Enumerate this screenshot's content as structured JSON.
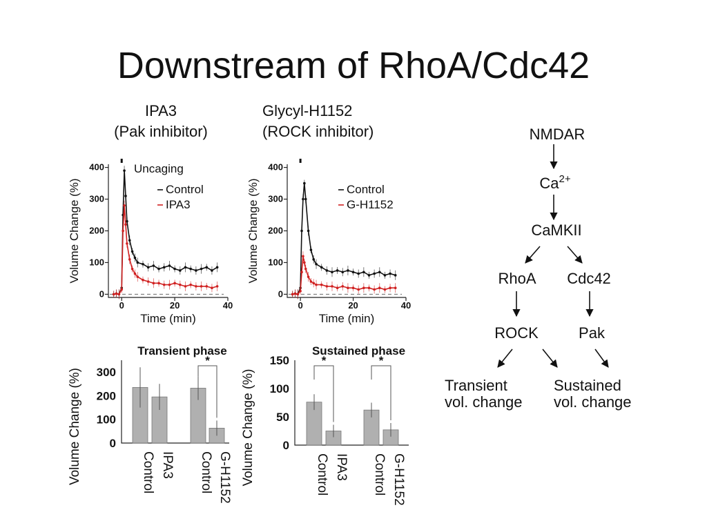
{
  "slide": {
    "title": "Downstream of RhoA/Cdc42"
  },
  "columns": [
    {
      "line1": "IPA3",
      "line2": "(Pak inhibitor)"
    },
    {
      "line1": "Glycyl-H1152",
      "line2": "(ROCK inhibitor)"
    }
  ],
  "colors": {
    "control": "#111111",
    "treated": "#d02020",
    "bar": "#b0b0b0"
  },
  "chart_data": [
    {
      "type": "line",
      "panel": "IPA3 time course",
      "annotation": "Uncaging",
      "xlabel": "Time (min)",
      "ylabel": "Volume Change (%)",
      "xlim": [
        -5,
        40
      ],
      "ylim": [
        -10,
        410
      ],
      "xticks": [
        0,
        20,
        40
      ],
      "yticks": [
        0,
        100,
        200,
        300,
        400
      ],
      "baseline": 0,
      "series": [
        {
          "name": "Control",
          "color": "#111111",
          "x": [
            -3,
            -2,
            -1,
            0,
            0.5,
            1,
            1.5,
            2,
            3,
            4,
            5,
            6,
            8,
            10,
            12,
            14,
            16,
            18,
            20,
            22,
            24,
            26,
            28,
            30,
            32,
            34,
            36
          ],
          "y": [
            0,
            2,
            0,
            20,
            250,
            390,
            310,
            230,
            170,
            135,
            115,
            100,
            95,
            85,
            90,
            80,
            85,
            90,
            80,
            75,
            85,
            80,
            75,
            80,
            85,
            75,
            85
          ]
        },
        {
          "name": "IPA3",
          "color": "#d02020",
          "x": [
            -3,
            -2,
            -1,
            0,
            0.5,
            1,
            1.5,
            2,
            3,
            4,
            5,
            6,
            8,
            10,
            12,
            14,
            16,
            18,
            20,
            22,
            24,
            26,
            28,
            30,
            32,
            34,
            36
          ],
          "y": [
            0,
            2,
            0,
            15,
            200,
            280,
            220,
            160,
            110,
            80,
            65,
            55,
            45,
            40,
            35,
            35,
            30,
            30,
            35,
            30,
            25,
            30,
            25,
            25,
            25,
            20,
            25
          ]
        }
      ]
    },
    {
      "type": "line",
      "panel": "G-H1152 time course",
      "xlabel": "Time (min)",
      "ylabel": "Volume Change (%)",
      "xlim": [
        -5,
        40
      ],
      "ylim": [
        -10,
        410
      ],
      "xticks": [
        0,
        20,
        40
      ],
      "yticks": [
        0,
        100,
        200,
        300,
        400
      ],
      "baseline": 0,
      "series": [
        {
          "name": "Control",
          "color": "#111111",
          "x": [
            -3,
            -2,
            -1,
            0,
            0.5,
            1,
            1.5,
            2,
            3,
            4,
            5,
            6,
            8,
            10,
            12,
            14,
            16,
            18,
            20,
            22,
            24,
            26,
            28,
            30,
            32,
            34,
            36
          ],
          "y": [
            0,
            2,
            0,
            20,
            200,
            300,
            350,
            300,
            200,
            140,
            110,
            95,
            85,
            75,
            70,
            75,
            70,
            75,
            70,
            65,
            70,
            60,
            65,
            70,
            60,
            65,
            60
          ]
        },
        {
          "name": "G-H1152",
          "color": "#d02020",
          "x": [
            -3,
            -2,
            -1,
            0,
            0.5,
            1,
            1.5,
            2,
            3,
            4,
            5,
            6,
            8,
            10,
            12,
            14,
            16,
            18,
            20,
            22,
            24,
            26,
            28,
            30,
            32,
            34,
            36
          ],
          "y": [
            0,
            2,
            0,
            10,
            70,
            120,
            100,
            80,
            55,
            40,
            35,
            30,
            30,
            25,
            25,
            20,
            25,
            20,
            20,
            15,
            20,
            20,
            15,
            20,
            15,
            20,
            20
          ]
        }
      ]
    },
    {
      "type": "bar",
      "panel": "Transient phase",
      "title": "Transient phase",
      "ylabel": "Volume Change (%)",
      "ylim": [
        0,
        350
      ],
      "yticks": [
        0,
        100,
        200,
        300
      ],
      "categories": [
        "Control",
        "IPA3",
        "Control",
        "G-H1152"
      ],
      "values": [
        235,
        195,
        232,
        63
      ],
      "errors": [
        85,
        55,
        50,
        32
      ],
      "significance": [
        {
          "pair": [
            2,
            3
          ],
          "label": "*"
        }
      ]
    },
    {
      "type": "bar",
      "panel": "Sustained phase",
      "title": "Sustained phase",
      "ylabel": "Volume Change (%)",
      "ylim": [
        0,
        150
      ],
      "yticks": [
        0,
        50,
        100,
        150
      ],
      "categories": [
        "Control",
        "IPA3",
        "Control",
        "G-H1152"
      ],
      "values": [
        76,
        25,
        62,
        27
      ],
      "errors": [
        14,
        11,
        13,
        12
      ],
      "significance": [
        {
          "pair": [
            0,
            1
          ],
          "label": "*"
        },
        {
          "pair": [
            2,
            3
          ],
          "label": "*"
        }
      ]
    }
  ],
  "pathway": {
    "nmdar": "NMDAR",
    "ca": "Ca",
    "ca_sup": "2+",
    "camkii": "CaMKII",
    "rhoa": "RhoA",
    "cdc42": "Cdc42",
    "rock": "ROCK",
    "pak": "Pak",
    "transient_1": "Transient",
    "transient_2": "vol. change",
    "sustained_1": "Sustained",
    "sustained_2": "vol. change"
  }
}
